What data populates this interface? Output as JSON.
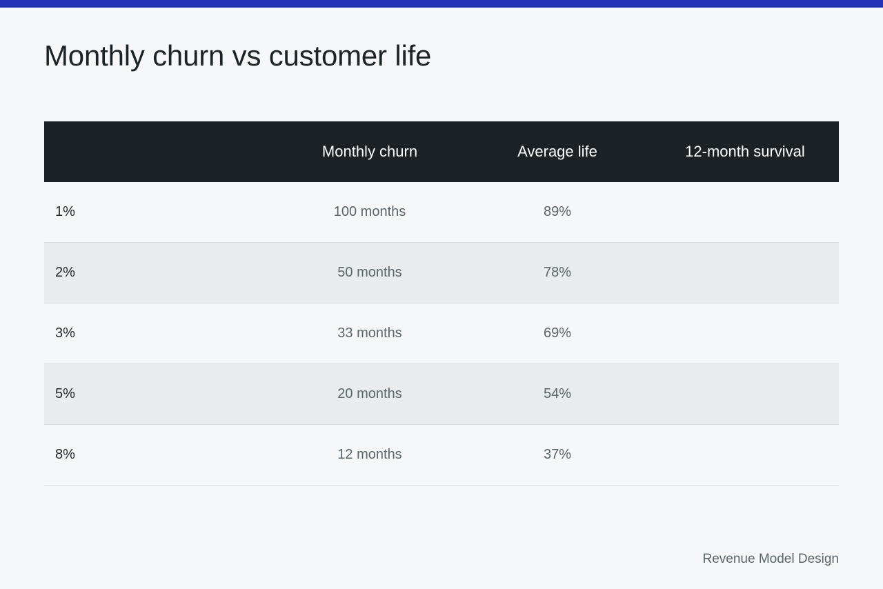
{
  "colors": {
    "accent_bar": "#2532b8",
    "header_background": "#1b2124",
    "row_alt_background": "#e8eced",
    "page_background": "#f6f7f9"
  },
  "page_title": "Monthly churn vs customer life",
  "table": {
    "headers": [
      "",
      "Monthly churn",
      "Average life",
      "12-month survival"
    ],
    "rows": [
      [
        "1%",
        "100 months",
        "89%",
        ""
      ],
      [
        "2%",
        "50 months",
        "78%",
        ""
      ],
      [
        "3%",
        "33 months",
        "69%",
        ""
      ],
      [
        "5%",
        "20 months",
        "54%",
        ""
      ],
      [
        "8%",
        "12 months",
        "37%",
        ""
      ]
    ]
  },
  "footer": {
    "brand": "Revenue Model Design"
  }
}
